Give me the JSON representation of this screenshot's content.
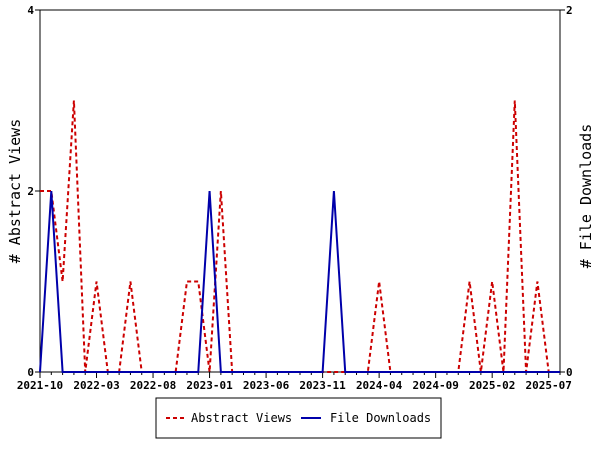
{
  "chart_data": {
    "type": "line",
    "xlabel": "",
    "ylabel_left": "# Abstract Views",
    "ylabel_right": "# File Downloads",
    "x_ticks": [
      "2021-10",
      "2022-03",
      "2022-08",
      "2023-01",
      "2023-06",
      "2023-11",
      "2024-04",
      "2024-09",
      "2025-02",
      "2025-07"
    ],
    "x": [
      "2021-10",
      "2021-11",
      "2021-12",
      "2022-01",
      "2022-02",
      "2022-03",
      "2022-04",
      "2022-05",
      "2022-06",
      "2022-07",
      "2022-08",
      "2022-09",
      "2022-10",
      "2022-11",
      "2022-12",
      "2023-01",
      "2023-02",
      "2023-03",
      "2023-04",
      "2023-05",
      "2023-06",
      "2023-07",
      "2023-08",
      "2023-09",
      "2023-10",
      "2023-11",
      "2023-12",
      "2024-01",
      "2024-02",
      "2024-03",
      "2024-04",
      "2024-05",
      "2024-06",
      "2024-07",
      "2024-08",
      "2024-09",
      "2024-10",
      "2024-11",
      "2024-12",
      "2025-01",
      "2025-02",
      "2025-03",
      "2025-04",
      "2025-05",
      "2025-06",
      "2025-07",
      "2025-08"
    ],
    "left_ylim": [
      0,
      4
    ],
    "left_yticks": [
      "0",
      "2",
      "4"
    ],
    "right_ylim": [
      0,
      2
    ],
    "right_yticks": [
      "0",
      "2"
    ],
    "series": [
      {
        "name": "Abstract Views",
        "axis": "left",
        "color": "#cc0000",
        "dash": "dashed",
        "values": [
          2,
          2,
          1,
          3,
          0,
          1,
          0,
          0,
          1,
          0,
          0,
          0,
          0,
          1,
          1,
          0,
          2,
          0,
          0,
          0,
          0,
          0,
          0,
          0,
          0,
          0,
          0,
          0,
          0,
          0,
          1,
          0,
          0,
          0,
          0,
          0,
          0,
          0,
          1,
          0,
          1,
          0,
          3,
          0,
          1,
          0,
          0
        ]
      },
      {
        "name": "File Downloads",
        "axis": "right",
        "color": "#0000aa",
        "dash": "solid",
        "values": [
          0,
          1,
          0,
          0,
          0,
          0,
          0,
          0,
          0,
          0,
          0,
          0,
          0,
          0,
          0,
          1,
          0,
          0,
          0,
          0,
          0,
          0,
          0,
          0,
          0,
          0,
          1,
          0,
          0,
          0,
          0,
          0,
          0,
          0,
          0,
          0,
          0,
          0,
          0,
          0,
          0,
          0,
          0,
          0,
          0,
          0,
          0
        ]
      }
    ],
    "legend": {
      "placement": "bottom",
      "labels": [
        "Abstract Views",
        "File Downloads"
      ]
    }
  }
}
